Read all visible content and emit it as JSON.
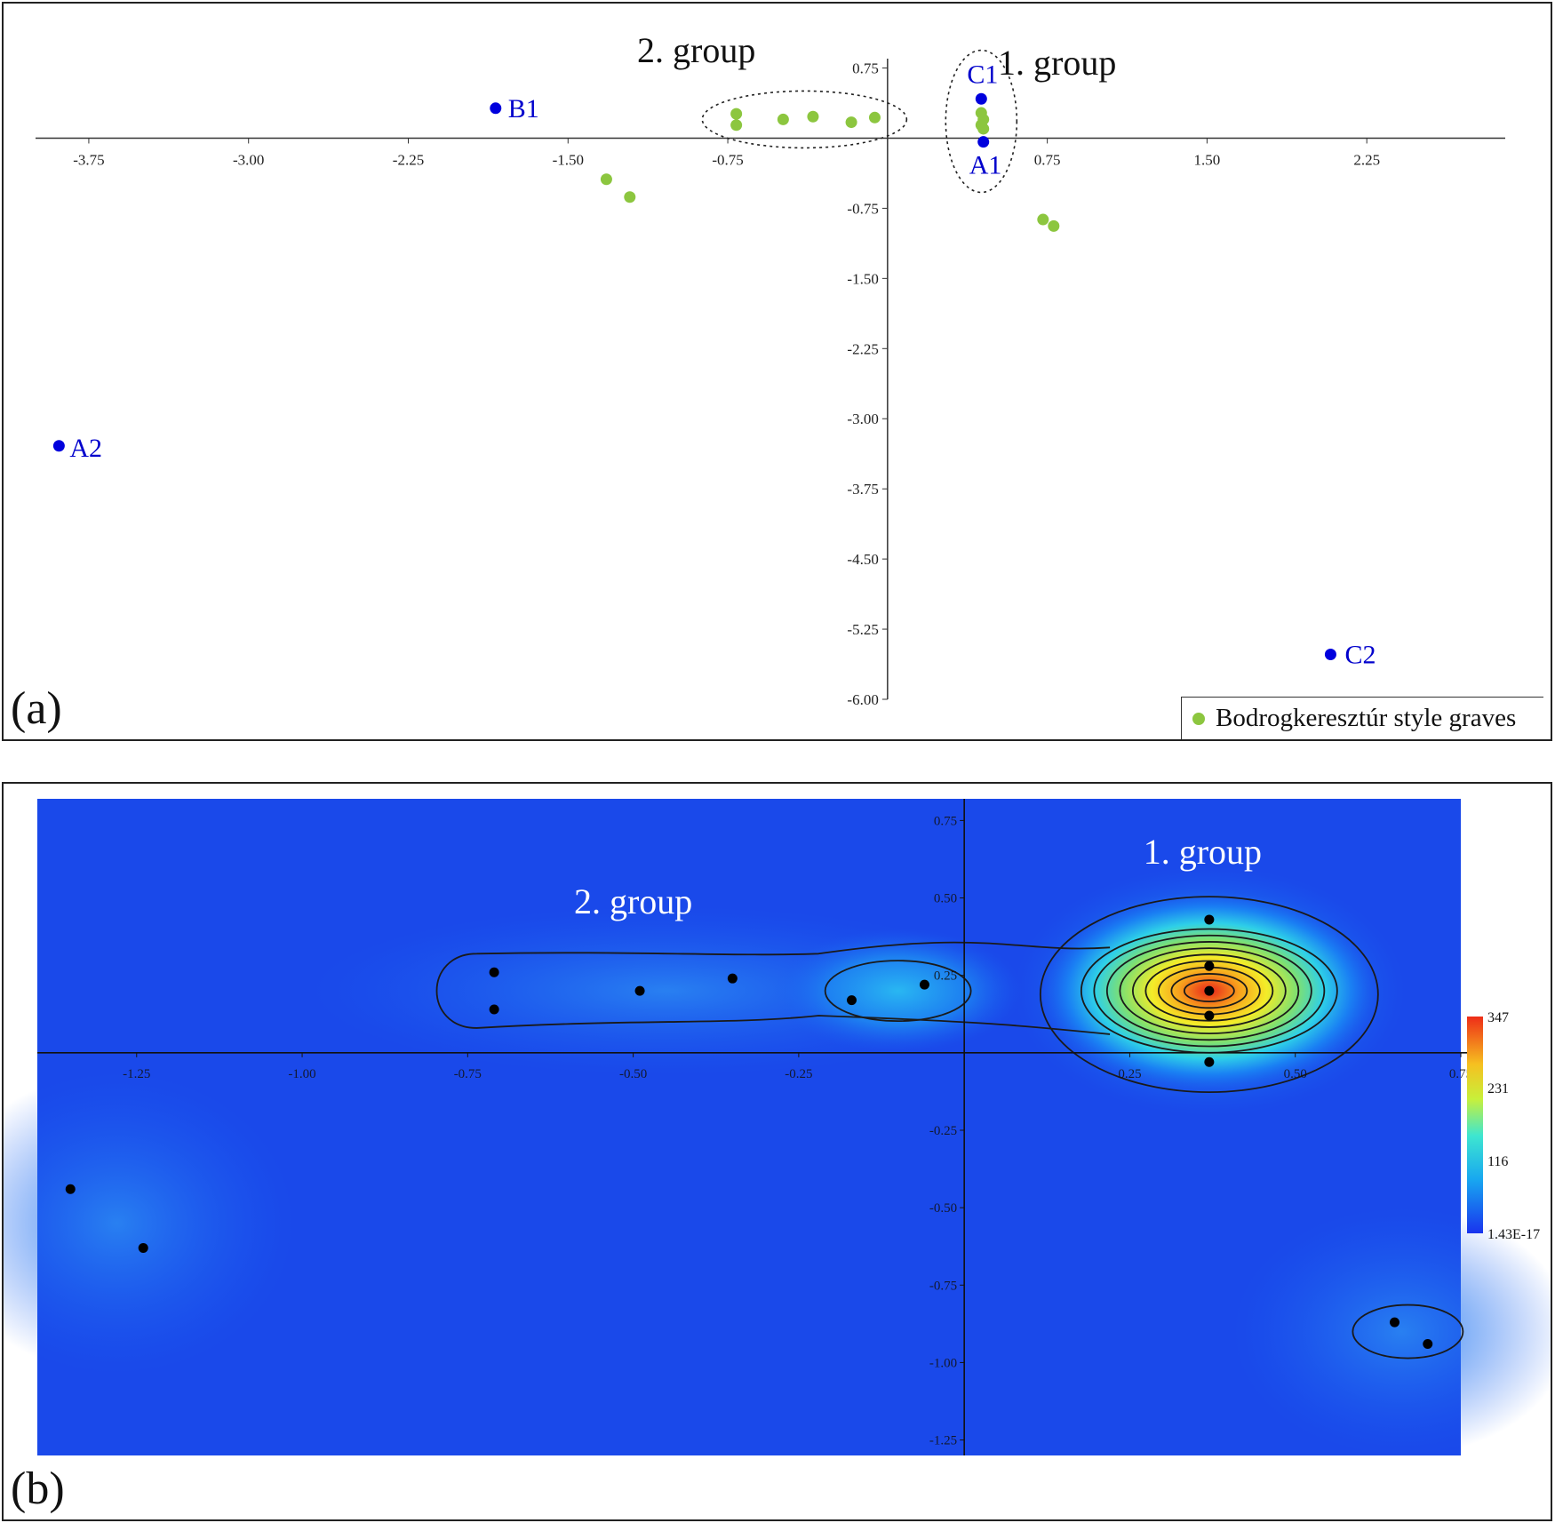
{
  "chart_data": [
    {
      "type": "scatter",
      "panel_label": "(a)",
      "xlim": [
        -4.0,
        2.9
      ],
      "ylim": [
        -6.0,
        0.85
      ],
      "x_ticks": [
        "-3.75",
        "-3.00",
        "-2.25",
        "-1.50",
        "-0.75",
        "0.75",
        "1.50",
        "2.25"
      ],
      "x_tick_values": [
        -3.75,
        -3.0,
        -2.25,
        -1.5,
        -0.75,
        0.75,
        1.5,
        2.25
      ],
      "y_ticks": [
        "0.75",
        "-0.75",
        "-1.50",
        "-2.25",
        "-3.00",
        "-3.75",
        "-4.50",
        "-5.25",
        "-6.00"
      ],
      "y_tick_values": [
        0.75,
        -0.75,
        -1.5,
        -2.25,
        -3.0,
        -3.75,
        -4.5,
        -5.25,
        -6.0
      ],
      "labeled_points": [
        {
          "label": "B1",
          "x": -1.84,
          "y": 0.32
        },
        {
          "label": "C1",
          "x": 0.44,
          "y": 0.42
        },
        {
          "label": "A1",
          "x": 0.45,
          "y": -0.04
        },
        {
          "label": "A2",
          "x": -3.89,
          "y": -3.29
        },
        {
          "label": "C2",
          "x": 2.08,
          "y": -5.52
        }
      ],
      "series": [
        {
          "name": "Bodrogkeresztúr style graves",
          "color": "#8cc63f",
          "points": [
            {
              "x": -0.71,
              "y": 0.26
            },
            {
              "x": -0.71,
              "y": 0.14
            },
            {
              "x": -0.49,
              "y": 0.2
            },
            {
              "x": -0.35,
              "y": 0.23
            },
            {
              "x": -0.17,
              "y": 0.17
            },
            {
              "x": -0.06,
              "y": 0.22
            },
            {
              "x": 0.44,
              "y": 0.27
            },
            {
              "x": 0.45,
              "y": 0.2
            },
            {
              "x": 0.44,
              "y": 0.14
            },
            {
              "x": 0.45,
              "y": 0.1
            },
            {
              "x": -1.32,
              "y": -0.44
            },
            {
              "x": -1.21,
              "y": -0.63
            },
            {
              "x": 0.73,
              "y": -0.87
            },
            {
              "x": 0.78,
              "y": -0.94
            }
          ]
        }
      ],
      "annotations": [
        "2. group",
        "1. group"
      ],
      "legend": {
        "label": "Bodrogkeresztúr style graves",
        "position": "bottom-right"
      },
      "marker_color_labeled": "#0000dd"
    },
    {
      "type": "heatmap",
      "panel_label": "(b)",
      "xlim": [
        -1.4,
        0.75
      ],
      "ylim": [
        -1.3,
        0.82
      ],
      "x_ticks": [
        "-1.25",
        "-1.00",
        "-0.75",
        "-0.50",
        "-0.25",
        "0.25",
        "0.50",
        "0.75"
      ],
      "x_tick_values": [
        -1.25,
        -1.0,
        -0.75,
        -0.5,
        -0.25,
        0.25,
        0.5,
        0.75
      ],
      "y_ticks": [
        "0.75",
        "0.50",
        "0.25",
        "-0.25",
        "-0.50",
        "-0.75",
        "-1.00",
        "-1.25"
      ],
      "y_tick_values": [
        0.75,
        0.5,
        0.25,
        -0.25,
        -0.5,
        -0.75,
        -1.0,
        -1.25
      ],
      "points": [
        {
          "x": -0.71,
          "y": 0.26
        },
        {
          "x": -0.71,
          "y": 0.14
        },
        {
          "x": -0.49,
          "y": 0.2
        },
        {
          "x": -0.35,
          "y": 0.24
        },
        {
          "x": -0.17,
          "y": 0.17
        },
        {
          "x": -0.06,
          "y": 0.22
        },
        {
          "x": 0.37,
          "y": 0.43
        },
        {
          "x": 0.37,
          "y": 0.28
        },
        {
          "x": 0.37,
          "y": 0.2
        },
        {
          "x": 0.37,
          "y": 0.12
        },
        {
          "x": 0.37,
          "y": -0.03
        },
        {
          "x": -1.35,
          "y": -0.44
        },
        {
          "x": -1.24,
          "y": -0.63
        },
        {
          "x": 0.65,
          "y": -0.87
        },
        {
          "x": 0.7,
          "y": -0.94
        }
      ],
      "colorbar": {
        "max": "347",
        "mid_high": "231",
        "mid_low": "116",
        "min": "1.43E-17"
      },
      "annotations": [
        "2. group",
        "1. group"
      ]
    }
  ]
}
